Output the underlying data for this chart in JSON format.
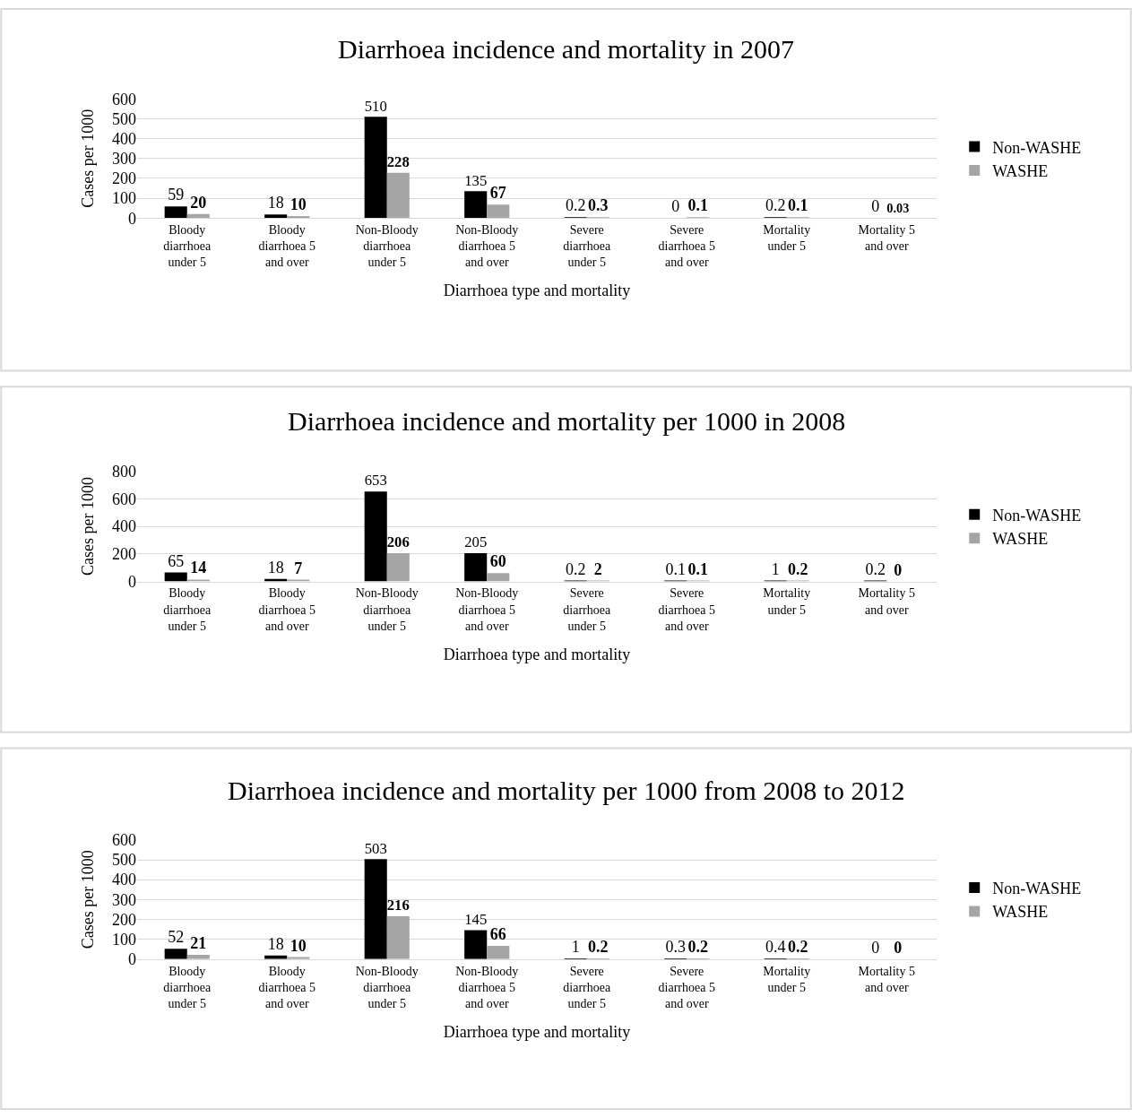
{
  "chart_data": [
    {
      "type": "bar",
      "title": "Diarrhoea incidence and mortality in 2007",
      "xlabel": "Diarrhoea type and mortality",
      "ylabel": "Cases per 1000",
      "categories": [
        "Bloody diarrhoea under 5",
        "Bloody diarrhoea 5 and over",
        "Non-Bloody diarrhoea under 5",
        "Non-Bloody diarrhoea 5 and over",
        "Severe diarrhoea under 5",
        "Severe diarrhoea 5 and over",
        "Mortality under 5",
        "Mortality 5 and over"
      ],
      "series": [
        {
          "name": "Non-WASHE",
          "color": "#000000",
          "values": [
            59,
            18,
            510,
            135,
            0.2,
            0,
            0.2,
            0
          ]
        },
        {
          "name": "WASHE",
          "color": "#a5a5a5",
          "values": [
            20,
            10,
            228,
            67,
            0.3,
            0.1,
            0.1,
            0.03
          ]
        }
      ],
      "ylim": [
        0,
        600
      ],
      "yticks": [
        0,
        100,
        200,
        300,
        400,
        500,
        600
      ],
      "grid": "y",
      "legend": "right",
      "data_labels": true
    },
    {
      "type": "bar",
      "title": "Diarrhoea incidence and mortality per 1000 in 2008",
      "xlabel": "Diarrhoea type and mortality",
      "ylabel": "Cases per 1000",
      "categories": [
        "Bloody diarrhoea under 5",
        "Bloody diarrhoea 5 and over",
        "Non-Bloody diarrhoea under 5",
        "Non-Bloody diarrhoea 5 and over",
        "Severe diarrhoea under 5",
        "Severe diarrhoea 5 and over",
        "Mortality under 5",
        "Mortality 5 and over"
      ],
      "series": [
        {
          "name": "Non-WASHE",
          "color": "#000000",
          "values": [
            65,
            18,
            653,
            205,
            0.2,
            0.1,
            1,
            0.2
          ]
        },
        {
          "name": "WASHE",
          "color": "#a5a5a5",
          "values": [
            14,
            7,
            206,
            60,
            2,
            0.1,
            0.2,
            0
          ]
        }
      ],
      "ylim": [
        0,
        800
      ],
      "yticks": [
        0,
        200,
        400,
        600,
        800
      ],
      "grid": "y",
      "legend": "right",
      "data_labels": true
    },
    {
      "type": "bar",
      "title": "Diarrhoea incidence and mortality per 1000 from 2008 to 2012",
      "xlabel": "Diarrhoea type and mortality",
      "ylabel": "Cases per 1000",
      "categories": [
        "Bloody diarrhoea under 5",
        "Bloody diarrhoea 5 and over",
        "Non-Bloody diarrhoea under 5",
        "Non-Bloody diarrhoea 5 and over",
        "Severe diarrhoea under 5",
        "Severe diarrhoea 5 and over",
        "Mortality under 5",
        "Mortality 5 and over"
      ],
      "series": [
        {
          "name": "Non-WASHE",
          "color": "#000000",
          "values": [
            52,
            18,
            503,
            145,
            1,
            0.3,
            0.4,
            0
          ]
        },
        {
          "name": "WASHE",
          "color": "#a5a5a5",
          "values": [
            21,
            10,
            216,
            66,
            0.2,
            0.2,
            0.2,
            0
          ]
        }
      ],
      "ylim": [
        0,
        600
      ],
      "yticks": [
        0,
        100,
        200,
        300,
        400,
        500,
        600
      ],
      "grid": "y",
      "legend": "right",
      "data_labels": true
    }
  ]
}
